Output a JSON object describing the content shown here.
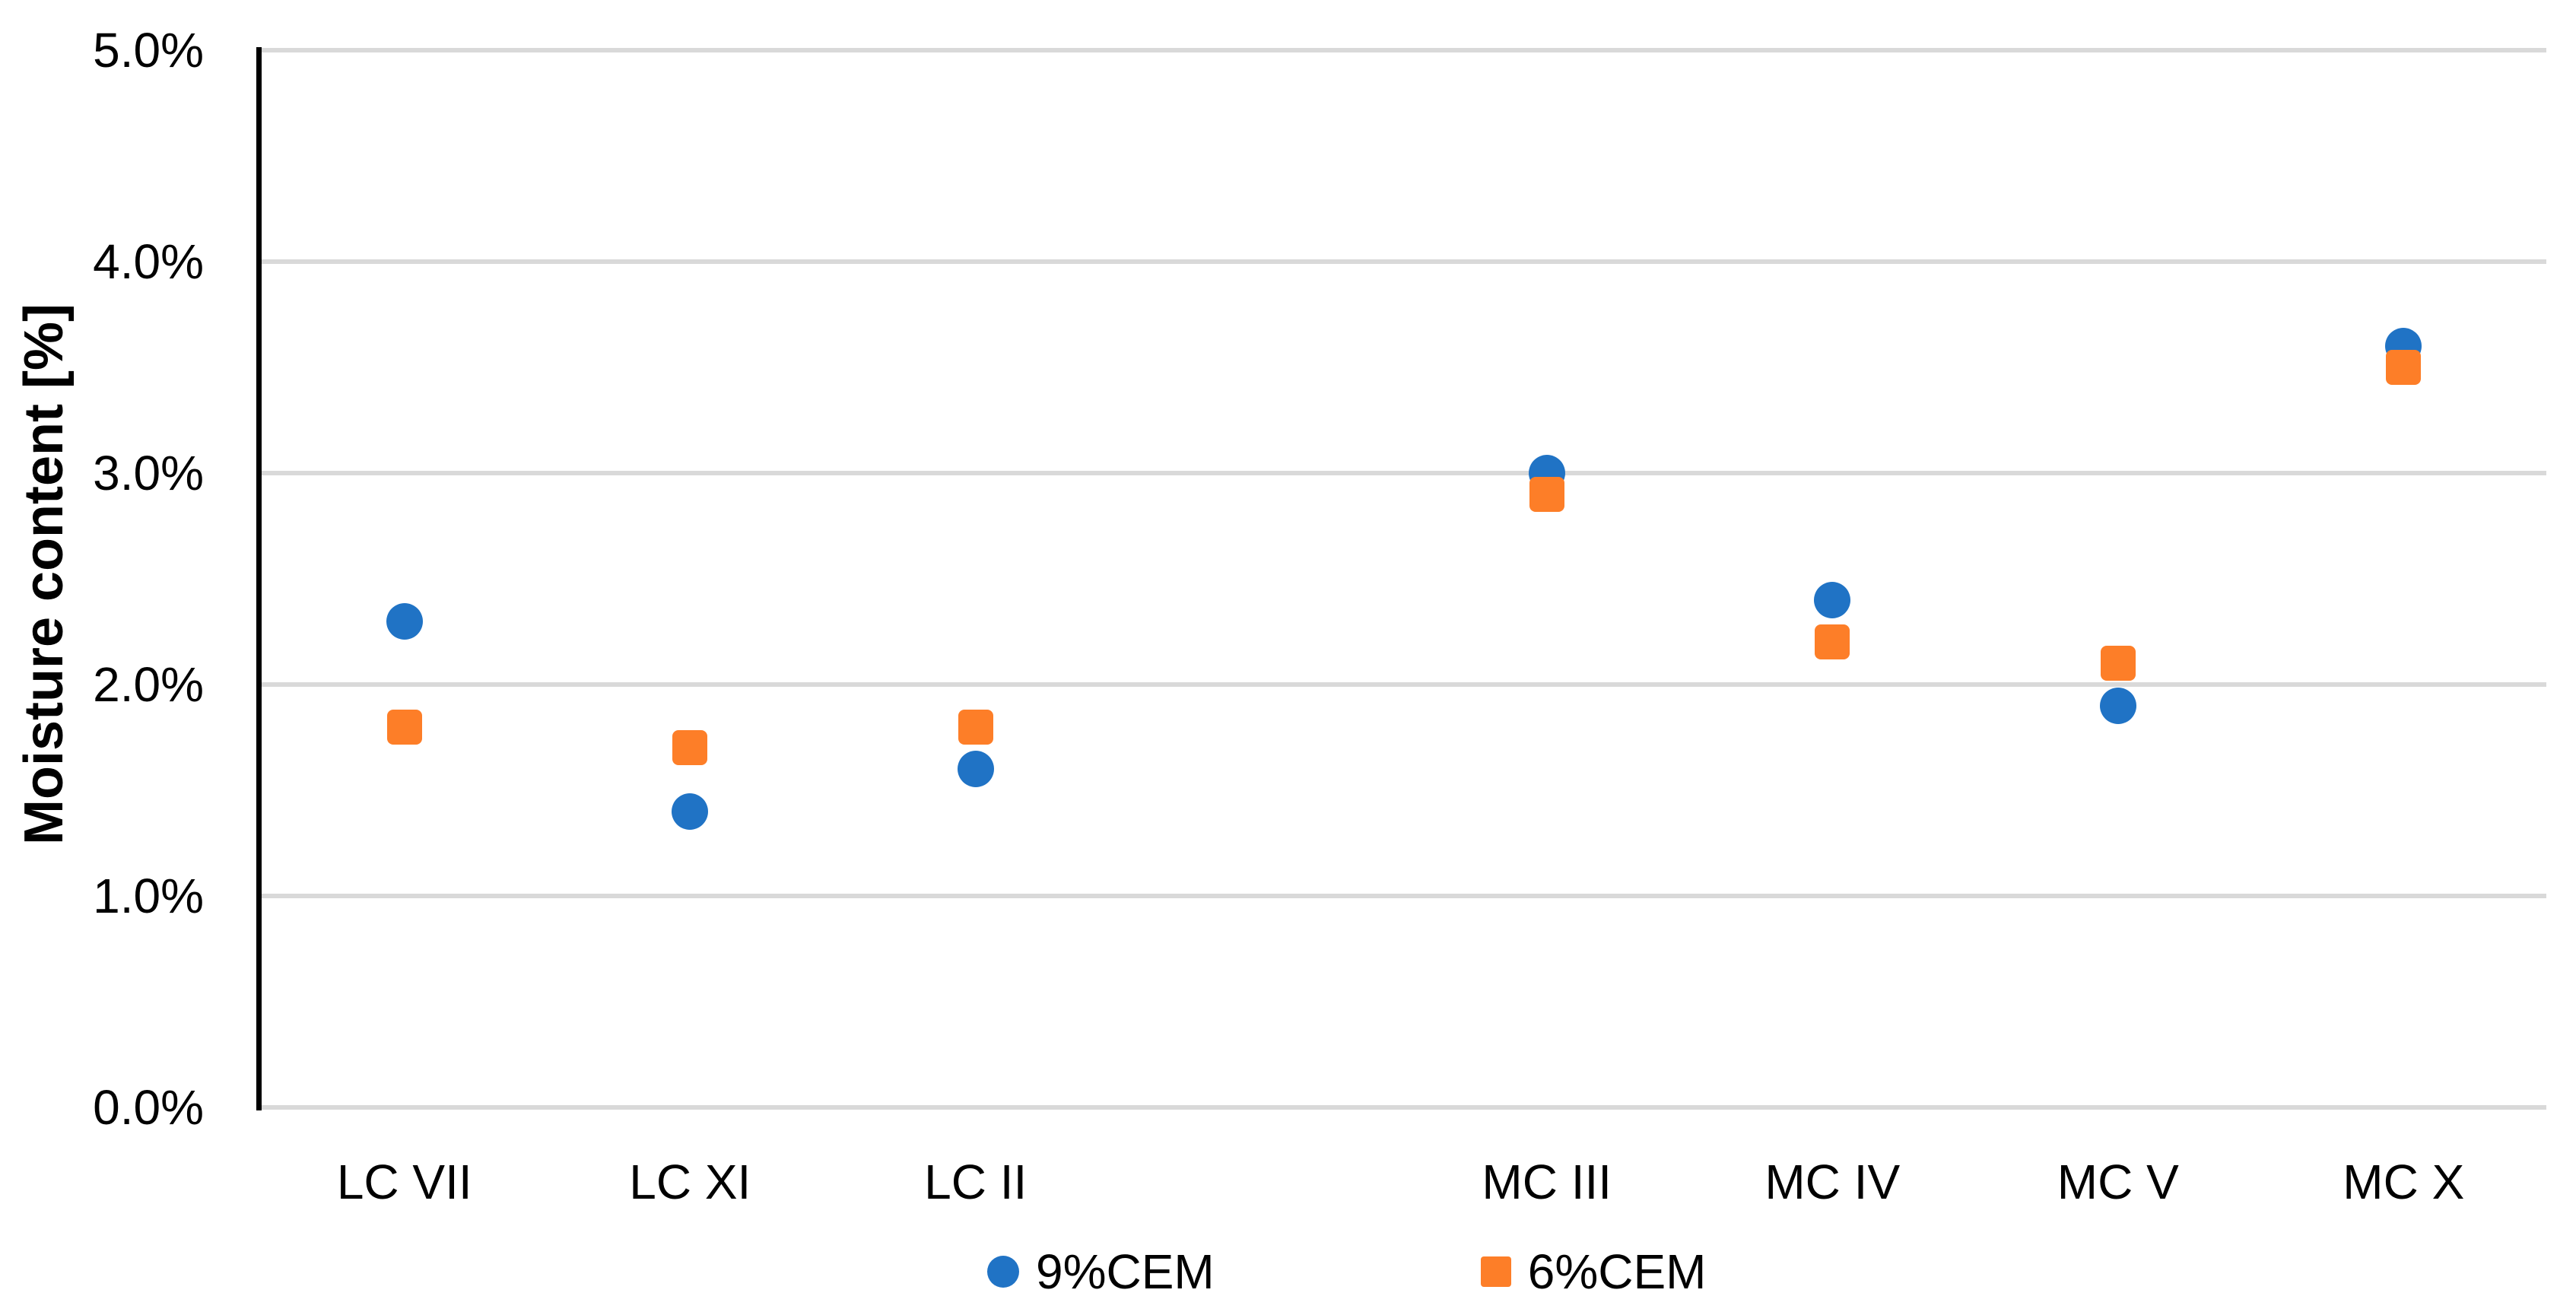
{
  "chart_data": {
    "type": "scatter",
    "title": "",
    "xlabel": "",
    "ylabel": "Moisture content [%]",
    "ylim": [
      0,
      5
    ],
    "y_unit": "%",
    "grid": true,
    "legend_position": "bottom",
    "yticks": [
      {
        "value": 5,
        "label": "5.0%"
      },
      {
        "value": 4,
        "label": "4.0%"
      },
      {
        "value": 3,
        "label": "3.0%"
      },
      {
        "value": 2,
        "label": "2.0%"
      },
      {
        "value": 1,
        "label": "1.0%"
      },
      {
        "value": 0,
        "label": "0.0%"
      }
    ],
    "categories": [
      "LC VII",
      "LC XI",
      "LC II",
      "MC III",
      "MC IV",
      "MC V",
      "MC X"
    ],
    "category_slots": [
      0,
      1,
      2,
      4,
      5,
      6,
      7
    ],
    "total_slots": 8,
    "series": [
      {
        "name": "9%CEM",
        "marker": "circle",
        "color": "#2073C5",
        "values": [
          2.3,
          1.4,
          1.6,
          3.0,
          2.4,
          1.9,
          3.6
        ]
      },
      {
        "name": "6%CEM",
        "marker": "square",
        "color": "#FD7E28",
        "values": [
          1.8,
          1.7,
          1.8,
          2.9,
          2.2,
          2.1,
          3.5
        ]
      }
    ],
    "colors": {
      "gridline": "#D9D9D9",
      "axis_line": "#000000",
      "text": "#000000",
      "background": "#FFFFFF"
    }
  }
}
